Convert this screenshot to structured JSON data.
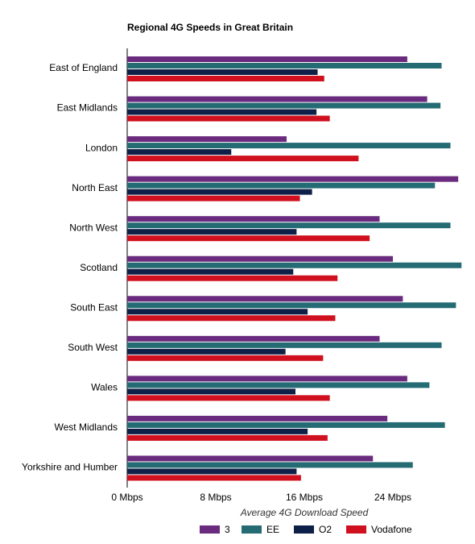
{
  "chart_data": {
    "type": "hbar",
    "title": "Regional 4G Speeds in Great Britain",
    "x_label": "Average 4G Download Speed",
    "categories": [
      "East of England",
      "East Midlands",
      "London",
      "North East",
      "North West",
      "Scotland",
      "South East",
      "South West",
      "Wales",
      "West Midlands",
      "Yorkshire and Humber"
    ],
    "series": [
      {
        "name": "3",
        "color": "#6a2a7e",
        "values": [
          25.3,
          27.1,
          14.4,
          29.9,
          22.8,
          24.0,
          24.9,
          22.8,
          25.3,
          23.5,
          22.2
        ]
      },
      {
        "name": "EE",
        "color": "#246b73",
        "values": [
          28.4,
          28.3,
          29.2,
          27.8,
          29.2,
          30.2,
          29.7,
          28.4,
          27.3,
          28.7,
          25.8
        ]
      },
      {
        "name": "O2",
        "color": "#0f2048",
        "values": [
          17.2,
          17.1,
          9.4,
          16.7,
          15.3,
          15.0,
          16.3,
          14.3,
          15.2,
          16.3,
          15.3
        ]
      },
      {
        "name": "Vodafone",
        "color": "#d0101e",
        "values": [
          17.8,
          18.3,
          20.9,
          15.6,
          21.9,
          19.0,
          18.8,
          17.7,
          18.3,
          18.1,
          15.7
        ]
      }
    ],
    "xlim": [
      0,
      30.5
    ],
    "xticks": [
      {
        "value": 0,
        "label": "0 Mbps"
      },
      {
        "value": 8,
        "label": "8 Mbps"
      },
      {
        "value": 16,
        "label": "16 Mbps"
      },
      {
        "value": 24,
        "label": "24 Mbps"
      }
    ],
    "legend": "bottom"
  }
}
